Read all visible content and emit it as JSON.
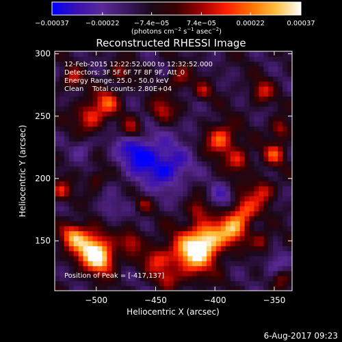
{
  "chart_data": {
    "type": "heatmap",
    "title": "Reconstructed RHESSI Image",
    "xlabel": "Heliocentric X (arcsec)",
    "ylabel": "Heliocentric Y (arcsec)",
    "xlim": [
      -535,
      -335
    ],
    "ylim": [
      110,
      302
    ],
    "x_ticks": [
      -500,
      -450,
      -400,
      -350
    ],
    "x_tick_labels": [
      "−500",
      "−450",
      "−400",
      "−350"
    ],
    "y_ticks": [
      150,
      200,
      250,
      300
    ],
    "y_tick_labels": [
      "150",
      "200",
      "250",
      "300"
    ],
    "colorbar": {
      "min": -0.00037,
      "max": 0.00037,
      "ticks": [
        -0.00037,
        -0.00022,
        -7.4e-05,
        7.4e-05,
        0.00022,
        0.00037
      ],
      "tick_labels": [
        "−0.00037",
        "−0.00022",
        "−7.4e−05",
        "7.4e−05",
        "0.00022",
        "0.00037"
      ],
      "unit_parts": [
        "(photons cm",
        "−2",
        " s",
        "−1",
        " asec",
        "−2",
        ")"
      ]
    },
    "annotations": [
      "12-Feb-2015 12:22:52.000 to 12:32:52.000",
      "Detectors: 3F 5F 6F 7F 8F 9F, Att_0",
      "Energy Range: 25.0 - 50.0 keV",
      "Clean    Total counts: 2.80E+04"
    ],
    "peak_label": "Position of Peak = [-417,137]",
    "peak": [
      -417,
      137
    ],
    "colors": [
      "#0000ff",
      "#3a10b0",
      "#5a2a98",
      "#3c1860",
      "#1a0818",
      "#3a0000",
      "#a00000",
      "#ff2000",
      "#ff7000",
      "#ffc040",
      "#ffffff"
    ]
  },
  "footer_date": "6-Aug-2017 09:23"
}
